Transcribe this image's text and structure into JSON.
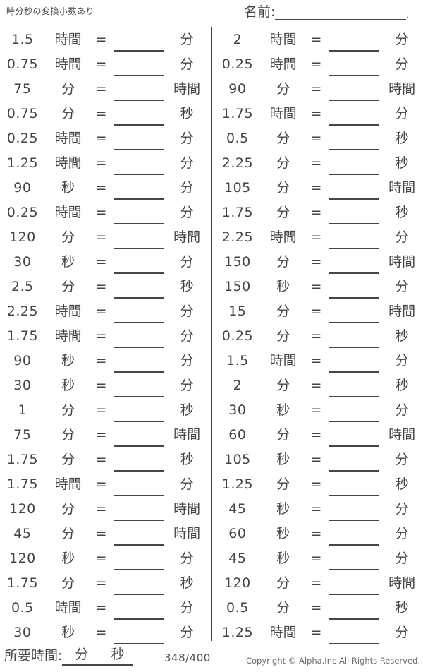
{
  "header": {
    "worksheet_title": "時分秒の変換小数あり",
    "name_label": "名前:",
    "name_period": "."
  },
  "equals": "=",
  "columns": {
    "left": {
      "rows": [
        {
          "value": "1.5",
          "from": "時間",
          "to": "分"
        },
        {
          "value": "0.75",
          "from": "時間",
          "to": "分"
        },
        {
          "value": "75",
          "from": "分",
          "to": "時間"
        },
        {
          "value": "0.75",
          "from": "分",
          "to": "秒"
        },
        {
          "value": "0.25",
          "from": "時間",
          "to": "分"
        },
        {
          "value": "1.25",
          "from": "時間",
          "to": "分"
        },
        {
          "value": "90",
          "from": "秒",
          "to": "分"
        },
        {
          "value": "0.25",
          "from": "時間",
          "to": "分"
        },
        {
          "value": "120",
          "from": "分",
          "to": "時間"
        },
        {
          "value": "30",
          "from": "秒",
          "to": "分"
        },
        {
          "value": "2.5",
          "from": "分",
          "to": "秒"
        },
        {
          "value": "2.25",
          "from": "時間",
          "to": "分"
        },
        {
          "value": "1.75",
          "from": "時間",
          "to": "分"
        },
        {
          "value": "90",
          "from": "秒",
          "to": "分"
        },
        {
          "value": "30",
          "from": "秒",
          "to": "分"
        },
        {
          "value": "1",
          "from": "分",
          "to": "秒"
        },
        {
          "value": "75",
          "from": "分",
          "to": "時間"
        },
        {
          "value": "1.75",
          "from": "分",
          "to": "秒"
        },
        {
          "value": "1.75",
          "from": "時間",
          "to": "分"
        },
        {
          "value": "120",
          "from": "分",
          "to": "時間"
        },
        {
          "value": "45",
          "from": "分",
          "to": "時間"
        },
        {
          "value": "120",
          "from": "秒",
          "to": "分"
        },
        {
          "value": "1.75",
          "from": "分",
          "to": "秒"
        },
        {
          "value": "0.5",
          "from": "時間",
          "to": "分"
        },
        {
          "value": "30",
          "from": "秒",
          "to": "分"
        }
      ]
    },
    "right": {
      "rows": [
        {
          "value": "2",
          "from": "時間",
          "to": "分"
        },
        {
          "value": "0.25",
          "from": "時間",
          "to": "分"
        },
        {
          "value": "90",
          "from": "分",
          "to": "時間"
        },
        {
          "value": "1.75",
          "from": "時間",
          "to": "分"
        },
        {
          "value": "0.5",
          "from": "分",
          "to": "秒"
        },
        {
          "value": "2.25",
          "from": "分",
          "to": "秒"
        },
        {
          "value": "105",
          "from": "分",
          "to": "時間"
        },
        {
          "value": "1.75",
          "from": "分",
          "to": "秒"
        },
        {
          "value": "2.25",
          "from": "時間",
          "to": "分"
        },
        {
          "value": "150",
          "from": "分",
          "to": "時間"
        },
        {
          "value": "150",
          "from": "秒",
          "to": "分"
        },
        {
          "value": "15",
          "from": "分",
          "to": "時間"
        },
        {
          "value": "0.25",
          "from": "分",
          "to": "秒"
        },
        {
          "value": "1.5",
          "from": "時間",
          "to": "分"
        },
        {
          "value": "2",
          "from": "分",
          "to": "秒"
        },
        {
          "value": "30",
          "from": "秒",
          "to": "分"
        },
        {
          "value": "60",
          "from": "分",
          "to": "時間"
        },
        {
          "value": "105",
          "from": "秒",
          "to": "分"
        },
        {
          "value": "1.25",
          "from": "分",
          "to": "秒"
        },
        {
          "value": "45",
          "from": "秒",
          "to": "分"
        },
        {
          "value": "60",
          "from": "秒",
          "to": "分"
        },
        {
          "value": "45",
          "from": "秒",
          "to": "分"
        },
        {
          "value": "120",
          "from": "分",
          "to": "時間"
        },
        {
          "value": "0.5",
          "from": "分",
          "to": "秒"
        },
        {
          "value": "1.25",
          "from": "時間",
          "to": "分"
        }
      ]
    }
  },
  "footer": {
    "time_label": "所要時間:",
    "time_unit_min": "分",
    "time_unit_sec": "秒",
    "score": "348/400",
    "copyright": "Copyright © Alpha.Inc All Rights Reserved."
  }
}
